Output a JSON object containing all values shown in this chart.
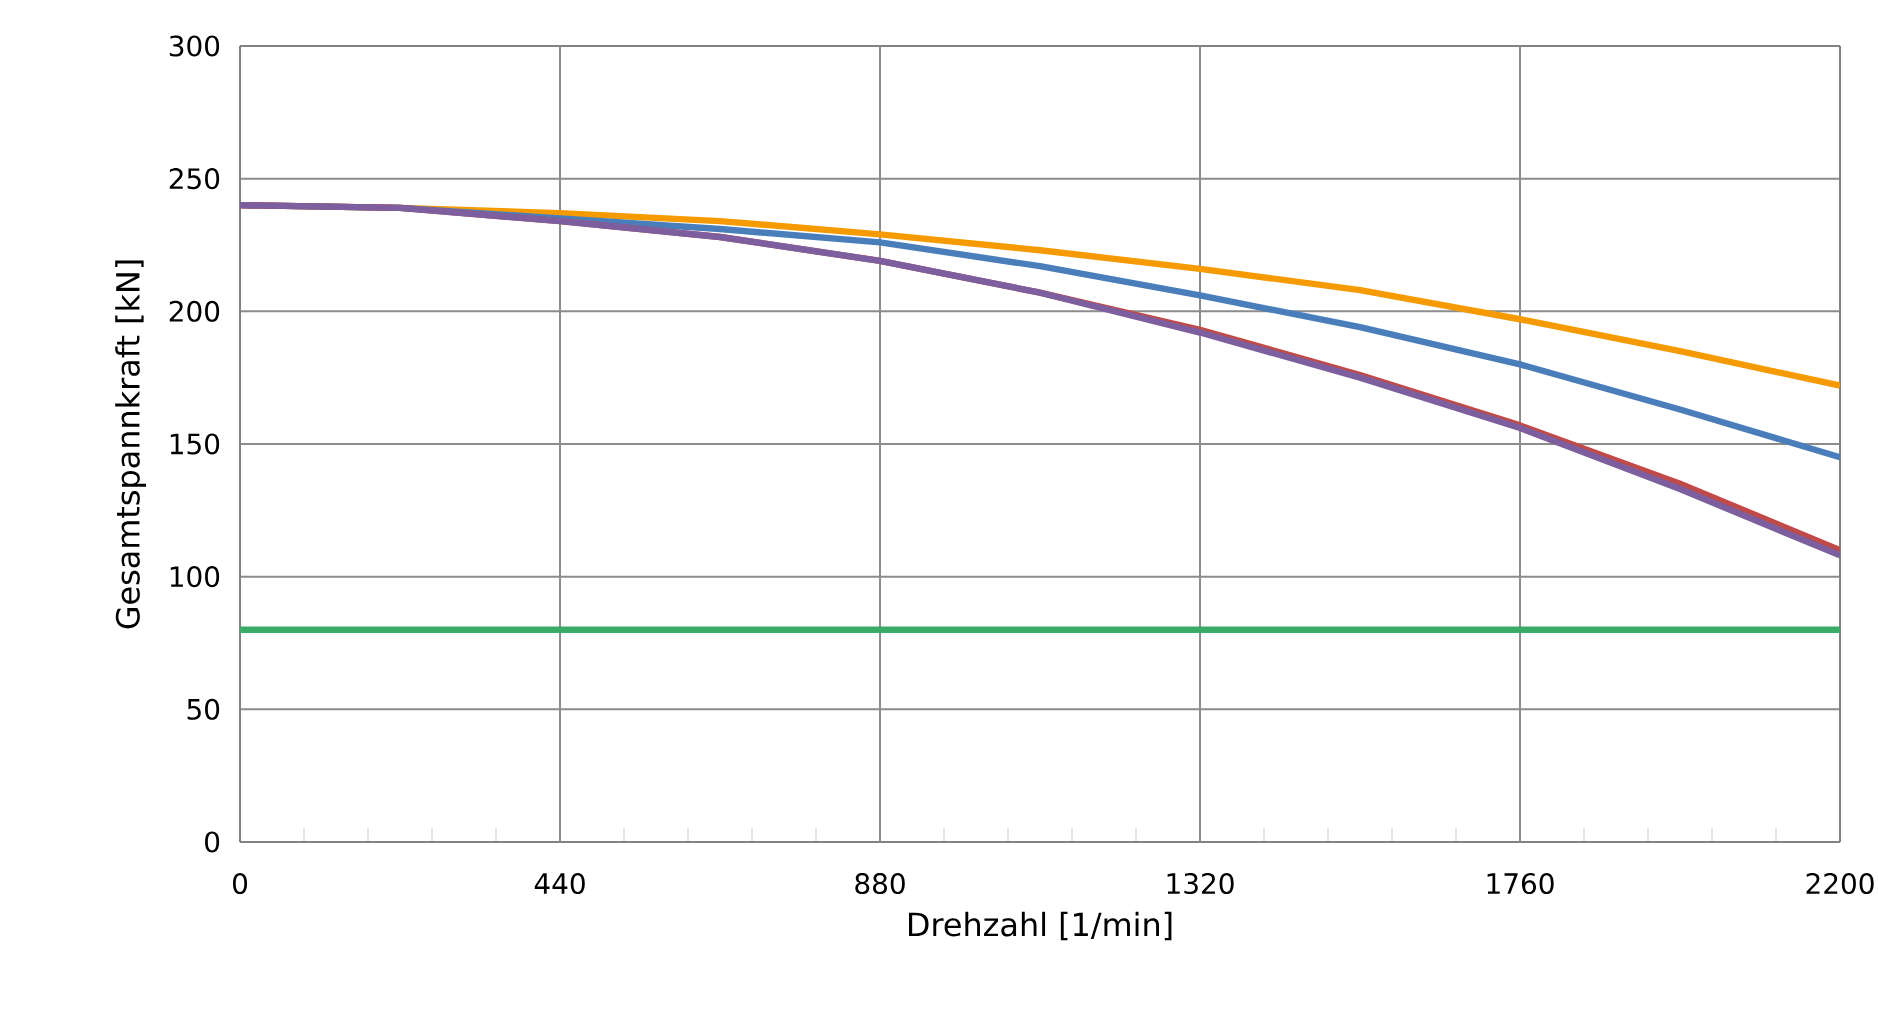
{
  "chart_data": {
    "type": "line",
    "xlabel": "Drehzahl [1/min]",
    "ylabel": "Gesamtspannkraft [kN]",
    "x": [
      0,
      220,
      440,
      660,
      880,
      1100,
      1320,
      1540,
      1760,
      1980,
      2200
    ],
    "series": [
      {
        "color": "#f59a00",
        "values": [
          240,
          239,
          237,
          234,
          229,
          223,
          216,
          208,
          197,
          185,
          172
        ]
      },
      {
        "color": "#4a7ebb",
        "values": [
          240,
          239,
          235,
          231,
          226,
          217,
          206,
          194,
          180,
          163,
          145
        ]
      },
      {
        "color": "#be4b48",
        "values": [
          240,
          239,
          234,
          228,
          219,
          207,
          193,
          176,
          157,
          135,
          110
        ]
      },
      {
        "color": "#7d5fa0",
        "values": [
          240,
          239,
          234,
          228,
          219,
          207,
          192,
          175,
          156,
          133,
          108
        ]
      },
      {
        "color": "#3cab6a",
        "values": [
          80,
          80,
          80,
          80,
          80,
          80,
          80,
          80,
          80,
          80,
          80
        ]
      }
    ],
    "xlim": [
      0,
      2200
    ],
    "ylim": [
      0,
      300
    ],
    "xticks": [
      0,
      {
        "value": 88,
        "label": null
      },
      {
        "value": 176,
        "label": null
      },
      {
        "value": 264,
        "label": null
      },
      {
        "value": 352,
        "label": null
      },
      440,
      {
        "value": 528,
        "label": null
      },
      {
        "value": 616,
        "label": null
      },
      {
        "value": 704,
        "label": null
      },
      {
        "value": 792,
        "label": null
      },
      880,
      {
        "value": 968,
        "label": null
      },
      {
        "value": 1056,
        "label": null
      },
      {
        "value": 1144,
        "label": null
      },
      {
        "value": 1232,
        "label": null
      },
      1320,
      {
        "value": 1408,
        "label": null
      },
      {
        "value": 1496,
        "label": null
      },
      {
        "value": 1584,
        "label": null
      },
      {
        "value": 1672,
        "label": null
      },
      1760,
      {
        "value": 1848,
        "label": null
      },
      {
        "value": 1936,
        "label": null
      },
      {
        "value": 2024,
        "label": null
      },
      {
        "value": 2112,
        "label": null
      },
      2200
    ],
    "yticks": [
      0,
      50,
      100,
      150,
      200,
      250,
      300
    ],
    "grid": true,
    "marker": "none",
    "line_style": "solid"
  }
}
